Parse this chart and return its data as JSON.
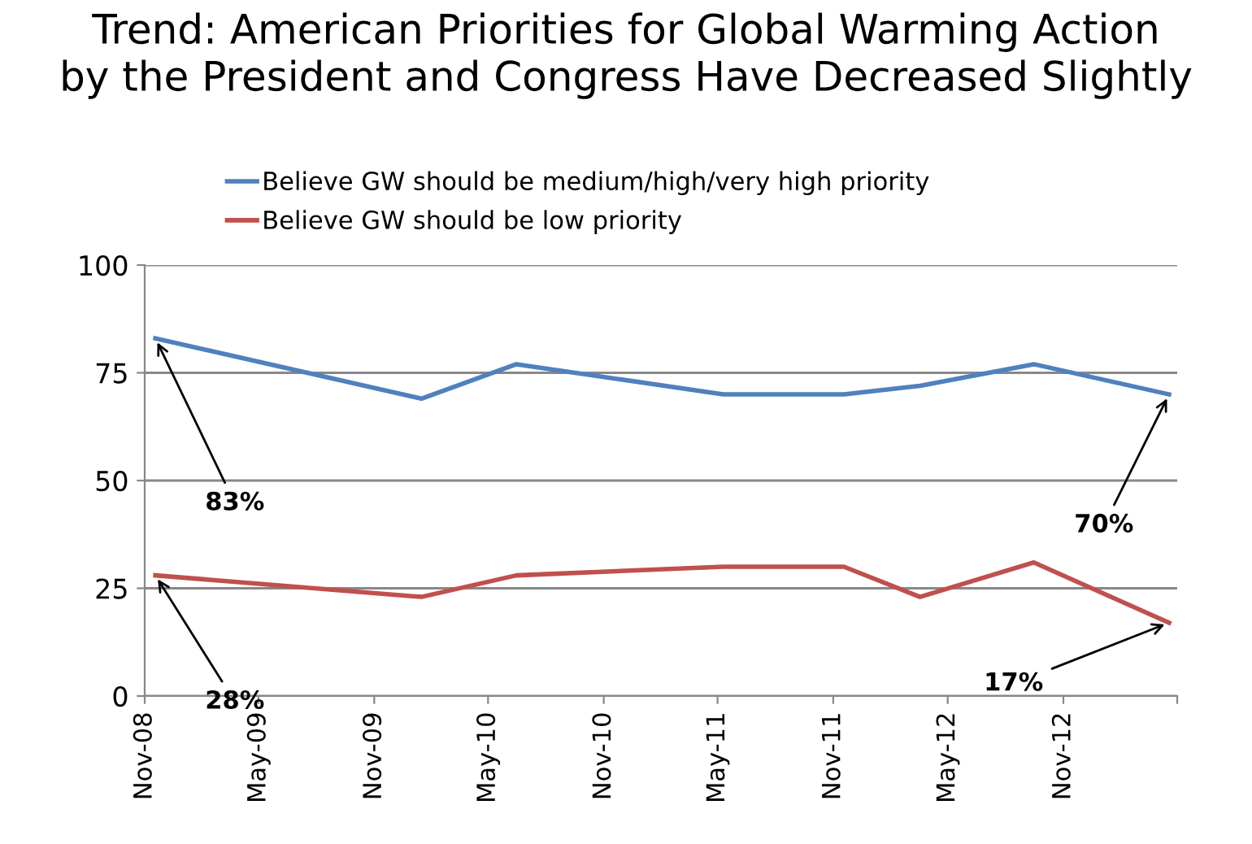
{
  "chart_data": {
    "type": "line",
    "title": "Trend: American Priorities for Global Warming Action\nby the President and Congress Have Decreased Slightly",
    "x": [
      "2008-11-18",
      "2010-01-15",
      "2010-06-15",
      "2011-05-10",
      "2011-11-18",
      "2012-03-18",
      "2012-09-15",
      "2013-04-18"
    ],
    "series": [
      {
        "name": "Believe GW should be medium/high/very high priority",
        "color": "#4f81bd",
        "values": [
          83,
          69,
          77,
          70,
          70,
          72,
          77,
          70
        ]
      },
      {
        "name": "Believe GW should be low priority",
        "color": "#c0504d",
        "values": [
          28,
          23,
          28,
          30,
          30,
          23,
          31,
          17
        ]
      }
    ],
    "xlim": [
      "2008-11-01",
      "2013-05-01"
    ],
    "xticks": [
      {
        "value": "2008-11-01",
        "label": "Nov-08"
      },
      {
        "value": "2009-05-01",
        "label": "May-09"
      },
      {
        "value": "2009-11-01",
        "label": "Nov-09"
      },
      {
        "value": "2010-05-01",
        "label": "May-10"
      },
      {
        "value": "2010-11-01",
        "label": "Nov-10"
      },
      {
        "value": "2011-05-01",
        "label": "May-11"
      },
      {
        "value": "2011-11-01",
        "label": "Nov-11"
      },
      {
        "value": "2012-05-01",
        "label": "May-12"
      },
      {
        "value": "2012-11-01",
        "label": "Nov-12"
      },
      {
        "value": "2013-05-01",
        "label": null
      }
    ],
    "ylim": [
      0,
      100
    ],
    "yticks": [
      0,
      25,
      50,
      75,
      100
    ],
    "grid": "y",
    "legend": "top",
    "marker": "none",
    "line_style": "solid",
    "annotations": [
      {
        "text": "83%",
        "x": "2008-11-18",
        "y": 83
      },
      {
        "text": "28%",
        "x": "2008-11-18",
        "y": 28
      },
      {
        "text": "70%",
        "x": "2013-04-18",
        "y": 70
      },
      {
        "text": "17%",
        "x": "2013-04-18",
        "y": 17
      }
    ]
  }
}
